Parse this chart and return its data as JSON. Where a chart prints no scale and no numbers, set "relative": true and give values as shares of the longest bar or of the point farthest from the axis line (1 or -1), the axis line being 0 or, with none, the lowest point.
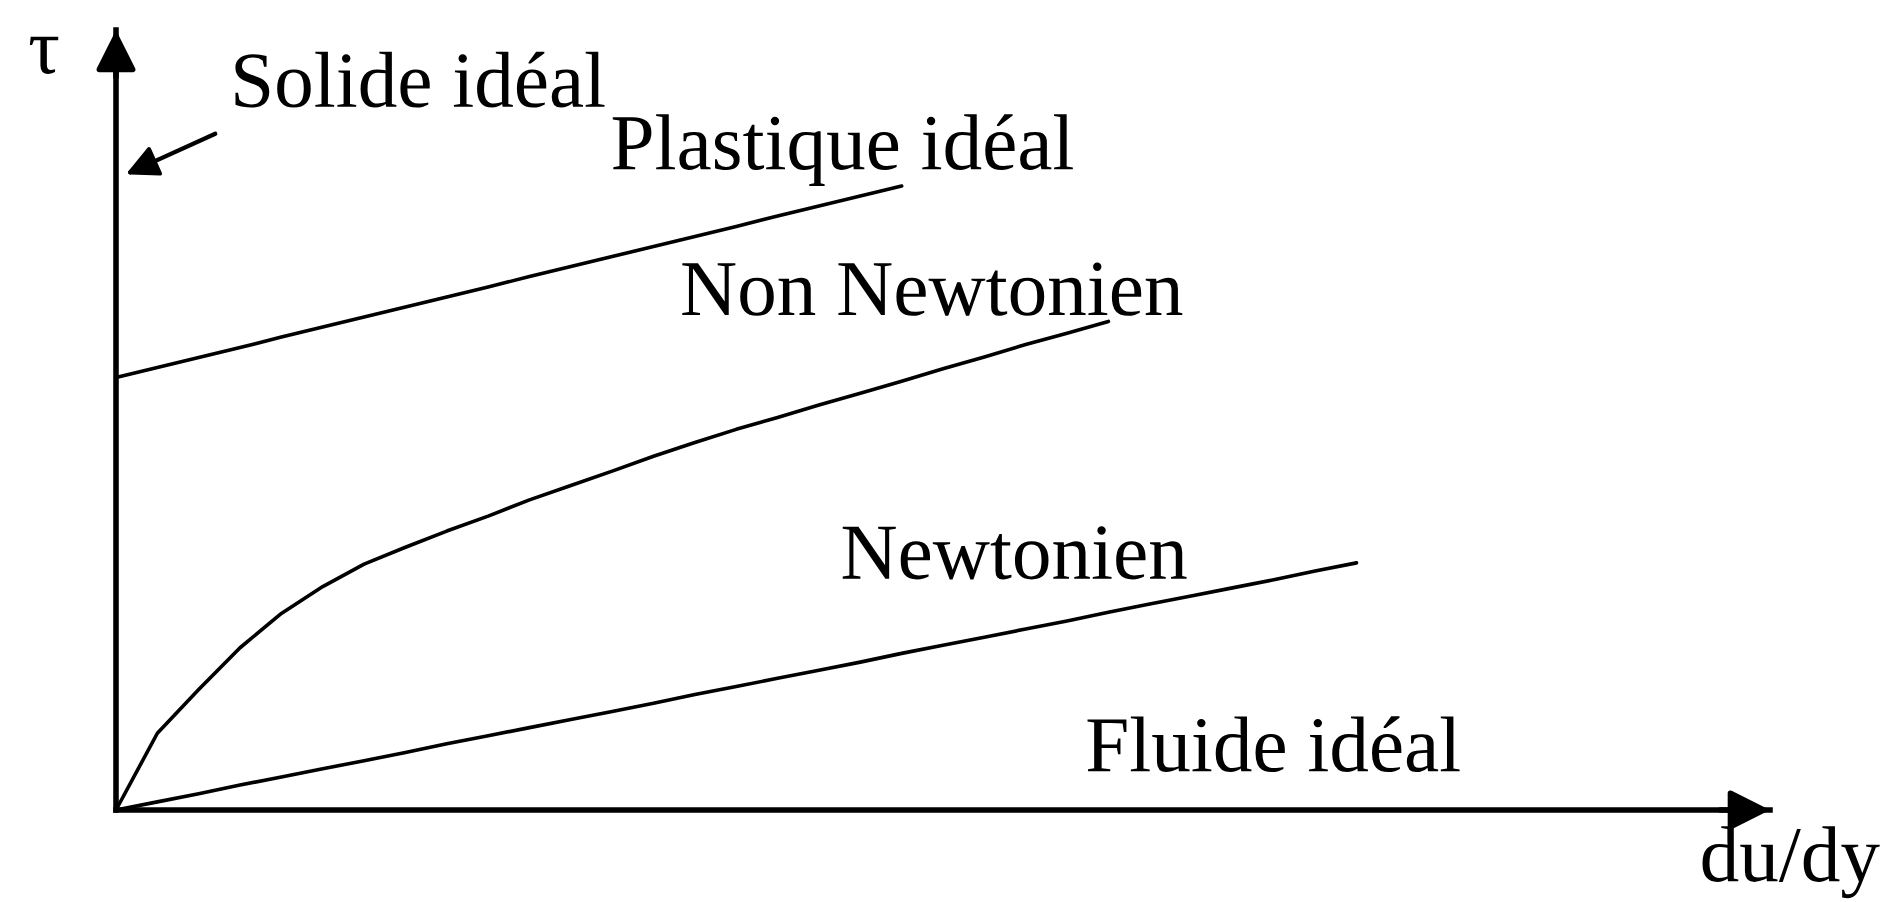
{
  "chart_data": {
    "type": "line",
    "relative": true,
    "xlabel": "du/dy",
    "ylabel": "τ",
    "marker": "none",
    "line_style": "solid",
    "annotations": [
      "Solide idéal",
      "Fluide idéal"
    ],
    "categories": [
      null,
      null,
      null,
      null,
      null,
      null,
      null,
      null,
      null,
      null,
      null,
      null,
      null,
      null,
      null,
      null,
      null,
      null,
      null,
      null,
      null,
      null,
      null,
      null,
      null,
      null,
      null,
      null,
      null,
      null,
      null,
      null,
      null,
      null,
      null,
      null,
      null,
      null,
      null,
      null,
      null
    ],
    "series": [
      {
        "name": "Plastique idéal",
        "color": "#000000",
        "values": [
          0.693,
          0.709,
          0.725,
          0.741,
          0.758,
          0.774,
          0.79,
          0.806,
          0.822,
          0.838,
          0.855,
          0.871,
          0.887,
          0.903,
          0.919,
          0.935,
          0.952,
          0.968,
          0.984,
          1.0,
          null,
          null,
          null,
          null,
          null,
          null,
          null,
          null,
          null,
          null,
          null,
          null,
          null,
          null,
          null,
          null,
          null,
          null,
          null,
          null,
          null
        ]
      },
      {
        "name": "Non Newtonien",
        "color": "#000000",
        "values": [
          0,
          0.123,
          0.193,
          0.26,
          0.315,
          0.358,
          0.394,
          0.421,
          0.447,
          0.471,
          0.497,
          0.52,
          0.543,
          0.567,
          0.589,
          0.61,
          0.629,
          0.649,
          0.668,
          0.687,
          0.707,
          0.726,
          0.746,
          0.764,
          0.783,
          null,
          null,
          null,
          null,
          null,
          null,
          null,
          null,
          null,
          null,
          null,
          null,
          null,
          null,
          null,
          null
        ]
      },
      {
        "name": "Newtonien",
        "color": "#000000",
        "values": [
          0,
          0.013,
          0.026,
          0.04,
          0.053,
          0.066,
          0.079,
          0.092,
          0.106,
          0.119,
          0.132,
          0.145,
          0.158,
          0.171,
          0.185,
          0.198,
          0.211,
          0.224,
          0.237,
          0.251,
          0.264,
          0.277,
          0.29,
          0.303,
          0.317,
          0.33,
          0.343,
          0.356,
          0.369,
          0.383,
          0.396,
          null,
          null,
          null,
          null,
          null,
          null,
          null,
          null,
          null,
          null
        ]
      }
    ]
  }
}
